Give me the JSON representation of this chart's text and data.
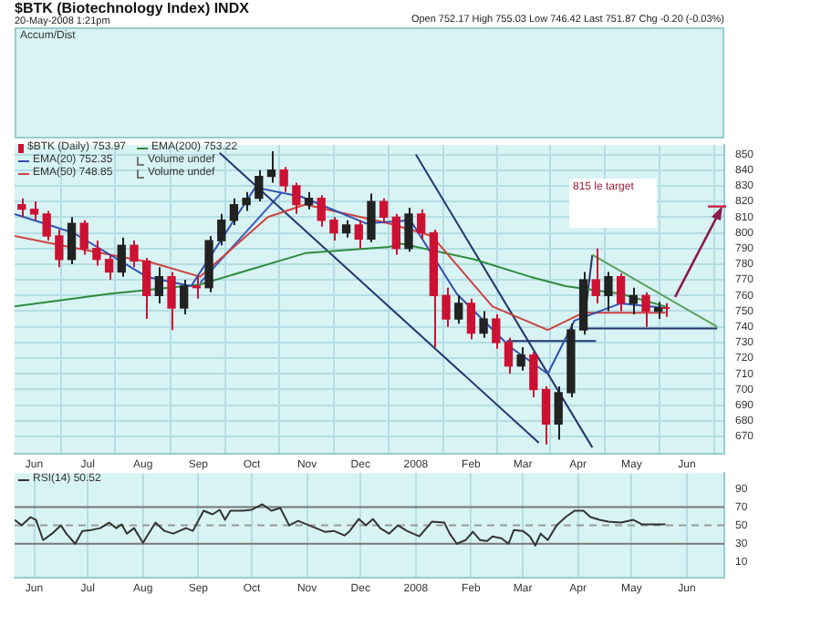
{
  "chart_data": [
    {
      "type": "candlestick",
      "title": "$BTK (Biotechnology Index) INDX",
      "subtitle": "20-May-2008 1:21pm",
      "annotations": [
        "Open 752.17 High 755.03 Low 746.42 Last 751.87 Chg -0.20 (-0.03%)",
        "Accum/Dist",
        "815 le target",
        "Volume undef",
        "Volume undef"
      ],
      "legend": "top left",
      "grid": true,
      "marker": "none",
      "xlim": [
        "2007-05-21",
        "2008-06-22"
      ],
      "xticks": [
        {
          "value": "2007-06-01",
          "label": "Jun"
        },
        {
          "value": "2007-07-01",
          "label": "Jul"
        },
        {
          "value": "2007-08-01",
          "label": "Aug"
        },
        {
          "value": "2007-09-01",
          "label": "Sep"
        },
        {
          "value": "2007-10-01",
          "label": "Oct"
        },
        {
          "value": "2007-11-01",
          "label": "Nov"
        },
        {
          "value": "2007-12-01",
          "label": "Dec"
        },
        {
          "value": "2008-01-01",
          "label": "2008"
        },
        {
          "value": "2008-02-01",
          "label": "Feb"
        },
        {
          "value": "2008-03-01",
          "label": "Mar"
        },
        {
          "value": "2008-04-01",
          "label": "Apr"
        },
        {
          "value": "2008-05-01",
          "label": "May"
        },
        {
          "value": "2008-06-01",
          "label": "Jun"
        }
      ],
      "ylim": [
        659,
        856
      ],
      "yticks": [
        670,
        680,
        690,
        700,
        710,
        720,
        730,
        740,
        750,
        760,
        770,
        780,
        790,
        800,
        810,
        820,
        830,
        840,
        850
      ],
      "series": [
        {
          "name": "$BTK (Daily) 753.97",
          "type": "candlestick",
          "x": [
            "2007-05-25",
            "2007-06-01",
            "2007-06-08",
            "2007-06-15",
            "2007-06-22",
            "2007-06-29",
            "2007-07-06",
            "2007-07-13",
            "2007-07-20",
            "2007-07-27",
            "2007-08-03",
            "2007-08-10",
            "2007-08-17",
            "2007-08-24",
            "2007-08-31",
            "2007-09-07",
            "2007-09-14",
            "2007-09-21",
            "2007-09-28",
            "2007-10-05",
            "2007-10-12",
            "2007-10-19",
            "2007-10-26",
            "2007-11-02",
            "2007-11-09",
            "2007-11-16",
            "2007-11-23",
            "2007-11-30",
            "2007-12-07",
            "2007-12-14",
            "2007-12-21",
            "2007-12-28",
            "2008-01-04",
            "2008-01-11",
            "2008-01-18",
            "2008-01-25",
            "2008-02-01",
            "2008-02-08",
            "2008-02-15",
            "2008-02-22",
            "2008-02-29",
            "2008-03-07",
            "2008-03-14",
            "2008-03-21",
            "2008-03-28",
            "2008-04-04",
            "2008-04-11",
            "2008-04-18",
            "2008-04-25",
            "2008-05-02",
            "2008-05-09",
            "2008-05-16",
            "2008-05-20"
          ],
          "ohlc": [
            [
              818,
              822,
              810,
              815
            ],
            [
              815,
              820,
              808,
              812
            ],
            [
              812,
              814,
              795,
              798
            ],
            [
              798,
              802,
              778,
              783
            ],
            [
              783,
              810,
              780,
              806
            ],
            [
              806,
              808,
              786,
              790
            ],
            [
              790,
              795,
              779,
              783
            ],
            [
              783,
              786,
              770,
              775
            ],
            [
              775,
              797,
              772,
              792
            ],
            [
              792,
              795,
              778,
              782
            ],
            [
              782,
              784,
              745,
              760
            ],
            [
              760,
              778,
              755,
              772
            ],
            [
              772,
              775,
              738,
              752
            ],
            [
              752,
              770,
              748,
              766
            ],
            [
              766,
              772,
              758,
              765
            ],
            [
              765,
              798,
              762,
              795
            ],
            [
              795,
              812,
              792,
              808
            ],
            [
              808,
              822,
              805,
              818
            ],
            [
              818,
              826,
              814,
              822
            ],
            [
              822,
              840,
              820,
              836
            ],
            [
              836,
              852,
              832,
              840
            ],
            [
              840,
              842,
              826,
              830
            ],
            [
              830,
              832,
              812,
              818
            ],
            [
              818,
              826,
              815,
              822
            ],
            [
              822,
              824,
              804,
              808
            ],
            [
              808,
              810,
              795,
              800
            ],
            [
              800,
              808,
              797,
              805
            ],
            [
              805,
              808,
              790,
              796
            ],
            [
              796,
              825,
              794,
              820
            ],
            [
              820,
              822,
              806,
              810
            ],
            [
              810,
              812,
              786,
              790
            ],
            [
              790,
              816,
              788,
              812
            ],
            [
              812,
              815,
              796,
              800
            ],
            [
              800,
              802,
              727,
              760
            ],
            [
              760,
              765,
              740,
              745
            ],
            [
              745,
              760,
              742,
              755
            ],
            [
              755,
              758,
              732,
              736
            ],
            [
              736,
              750,
              733,
              745
            ],
            [
              745,
              748,
              726,
              730
            ],
            [
              730,
              733,
              710,
              715
            ],
            [
              715,
              727,
              712,
              722
            ],
            [
              722,
              724,
              695,
              700
            ],
            [
              700,
              702,
              665,
              678
            ],
            [
              678,
              702,
              668,
              698
            ],
            [
              698,
              742,
              695,
              738
            ],
            [
              738,
              775,
              735,
              770
            ],
            [
              770,
              790,
              755,
              760
            ],
            [
              760,
              775,
              750,
              772
            ],
            [
              772,
              774,
              750,
              755
            ],
            [
              755,
              765,
              748,
              760
            ],
            [
              760,
              762,
              740,
              750
            ],
            [
              750,
              756,
              745,
              752
            ],
            [
              752.17,
              755.03,
              746.42,
              751.87
            ]
          ],
          "colors": [
            "#cc1133",
            "#cc1133",
            "#cc1133",
            "#cc1133",
            "#222222",
            "#cc1133",
            "#cc1133",
            "#cc1133",
            "#222222",
            "#cc1133",
            "#cc1133",
            "#222222",
            "#cc1133",
            "#222222",
            "#cc1133",
            "#222222",
            "#222222",
            "#222222",
            "#222222",
            "#222222",
            "#222222",
            "#cc1133",
            "#cc1133",
            "#222222",
            "#cc1133",
            "#cc1133",
            "#222222",
            "#cc1133",
            "#222222",
            "#cc1133",
            "#cc1133",
            "#222222",
            "#cc1133",
            "#cc1133",
            "#cc1133",
            "#222222",
            "#cc1133",
            "#222222",
            "#cc1133",
            "#cc1133",
            "#222222",
            "#cc1133",
            "#cc1133",
            "#222222",
            "#222222",
            "#222222",
            "#cc1133",
            "#222222",
            "#cc1133",
            "#222222",
            "#cc1133",
            "#222222",
            "#cc1133"
          ]
        },
        {
          "name": "EMA(20) 752.35",
          "type": "line",
          "color": "#3050b0",
          "x": [
            "2007-05-21",
            "2007-06-23",
            "2007-08-03",
            "2007-08-28",
            "2007-10-03",
            "2007-10-29",
            "2007-12-04",
            "2007-12-29",
            "2008-01-24",
            "2008-02-23",
            "2008-03-15",
            "2008-03-30",
            "2008-04-25",
            "2008-05-20"
          ],
          "values": [
            812,
            800,
            772,
            766,
            829,
            823,
            806,
            808,
            761,
            727,
            710,
            744,
            755,
            752
          ]
        },
        {
          "name": "EMA(50) 748.85",
          "type": "line",
          "color": "#d04040",
          "x": [
            "2007-05-21",
            "2007-06-16",
            "2007-08-06",
            "2007-09-02",
            "2007-10-10",
            "2007-10-31",
            "2007-12-17",
            "2008-01-10",
            "2008-02-13",
            "2008-03-15",
            "2008-04-04",
            "2008-05-20"
          ],
          "values": [
            798,
            792,
            781,
            772,
            810,
            818,
            806,
            798,
            753,
            738,
            749,
            749
          ]
        },
        {
          "name": "EMA(200) 753.22",
          "type": "line",
          "color": "#2e8b3e",
          "x": [
            "2007-05-21",
            "2007-07-13",
            "2007-09-02",
            "2007-10-31",
            "2007-12-17",
            "2007-12-24",
            "2008-02-03",
            "2008-03-05",
            "2008-03-25",
            "2008-04-25",
            "2008-05-20"
          ],
          "values": [
            753,
            761,
            767,
            787,
            791,
            793,
            783,
            772,
            766,
            761,
            753
          ]
        },
        {
          "type": "line",
          "color": "#26356e",
          "x": [
            "2007-09-13",
            "2008-03-10"
          ],
          "values": [
            851,
            666
          ]
        },
        {
          "type": "line",
          "color": "#26356e",
          "x": [
            "2008-01-01",
            "2008-04-09"
          ],
          "values": [
            850,
            663
          ]
        },
        {
          "type": "line",
          "color": "#3f5fc0",
          "x": [
            "2007-09-02",
            "2007-10-18"
          ],
          "values": [
            768,
            826
          ]
        },
        {
          "type": "line",
          "color": "#5aa05a",
          "x": [
            "2008-04-09",
            "2008-06-18"
          ],
          "values": [
            786,
            740
          ]
        },
        {
          "type": "line",
          "color": "#26356e",
          "x": [
            "2008-04-04",
            "2008-04-09"
          ],
          "values": [
            739,
            786
          ]
        },
        {
          "type": "line",
          "color": "#26356e",
          "x": [
            "2008-04-04",
            "2008-06-18"
          ],
          "values": [
            739,
            739
          ]
        },
        {
          "type": "line",
          "color": "#26356e",
          "x": [
            "2008-02-21",
            "2008-04-11"
          ],
          "values": [
            731,
            731
          ]
        }
      ]
    },
    {
      "type": "line",
      "legend": "top left",
      "grid": "x",
      "marker": "none",
      "xlim": [
        "2007-05-21",
        "2008-06-22"
      ],
      "xticks": [
        {
          "value": "2007-06-01",
          "label": "Jun"
        },
        {
          "value": "2007-07-01",
          "label": "Jul"
        },
        {
          "value": "2007-08-01",
          "label": "Aug"
        },
        {
          "value": "2007-09-01",
          "label": "Sep"
        },
        {
          "value": "2007-10-01",
          "label": "Oct"
        },
        {
          "value": "2007-11-01",
          "label": "Nov"
        },
        {
          "value": "2007-12-01",
          "label": "Dec"
        },
        {
          "value": "2008-01-01",
          "label": "2008"
        },
        {
          "value": "2008-02-01",
          "label": "Feb"
        },
        {
          "value": "2008-03-01",
          "label": "Mar"
        },
        {
          "value": "2008-04-01",
          "label": "Apr"
        },
        {
          "value": "2008-05-01",
          "label": "May"
        },
        {
          "value": "2008-06-01",
          "label": "Jun"
        }
      ],
      "ylim": [
        -7,
        107
      ],
      "yticks": [
        10,
        30,
        50,
        70,
        90
      ],
      "ref_lines": [
        {
          "axis": "y",
          "value": 70,
          "color": "#777777",
          "line_style": "solid"
        },
        {
          "axis": "y",
          "value": 50,
          "color": "#999999",
          "line_style": "dashed"
        },
        {
          "axis": "y",
          "value": 30,
          "color": "#777777",
          "line_style": "solid"
        }
      ],
      "series": [
        {
          "name": "RSI(14) 50.52",
          "color": "#333333",
          "x": [
            "2007-05-21",
            "2007-05-25",
            "2007-05-30",
            "2007-06-02",
            "2007-06-06",
            "2007-06-11",
            "2007-06-16",
            "2007-06-19",
            "2007-06-24",
            "2007-06-28",
            "2007-07-03",
            "2007-07-08",
            "2007-07-13",
            "2007-07-17",
            "2007-07-20",
            "2007-07-23",
            "2007-07-27",
            "2007-08-01",
            "2007-08-08",
            "2007-08-13",
            "2007-08-18",
            "2007-08-25",
            "2007-08-29",
            "2007-09-04",
            "2007-09-09",
            "2007-09-13",
            "2007-09-16",
            "2007-09-19",
            "2007-09-26",
            "2007-10-01",
            "2007-10-07",
            "2007-10-12",
            "2007-10-17",
            "2007-10-22",
            "2007-10-27",
            "2007-11-01",
            "2007-11-06",
            "2007-11-11",
            "2007-11-16",
            "2007-11-22",
            "2007-11-25",
            "2007-11-30",
            "2007-12-04",
            "2007-12-08",
            "2007-12-12",
            "2007-12-17",
            "2007-12-22",
            "2007-12-27",
            "2008-01-03",
            "2008-01-10",
            "2008-01-17",
            "2008-01-20",
            "2008-01-24",
            "2008-01-29",
            "2008-02-02",
            "2008-02-06",
            "2008-02-10",
            "2008-02-13",
            "2008-02-18",
            "2008-02-22",
            "2008-02-25",
            "2008-03-01",
            "2008-03-05",
            "2008-03-08",
            "2008-03-11",
            "2008-03-15",
            "2008-03-20",
            "2008-03-25",
            "2008-03-30",
            "2008-04-04",
            "2008-04-08",
            "2008-04-13",
            "2008-04-18",
            "2008-04-25",
            "2008-05-02",
            "2008-05-07",
            "2008-05-12",
            "2008-05-20"
          ],
          "values": [
            56,
            50,
            59,
            56,
            34,
            41,
            50,
            41,
            30,
            44,
            45,
            47,
            53,
            47,
            51,
            41,
            47,
            31,
            53,
            44,
            41,
            47,
            44,
            66,
            62,
            67,
            56,
            66,
            66,
            67,
            73,
            66,
            69,
            50,
            55,
            51,
            47,
            43,
            44,
            39,
            44,
            57,
            50,
            57,
            47,
            41,
            50,
            44,
            38,
            54,
            53,
            41,
            30,
            34,
            43,
            34,
            33,
            38,
            36,
            30,
            45,
            44,
            38,
            28,
            41,
            34,
            50,
            59,
            66,
            66,
            59,
            56,
            54,
            53,
            56,
            51,
            51,
            51
          ]
        }
      ]
    }
  ]
}
